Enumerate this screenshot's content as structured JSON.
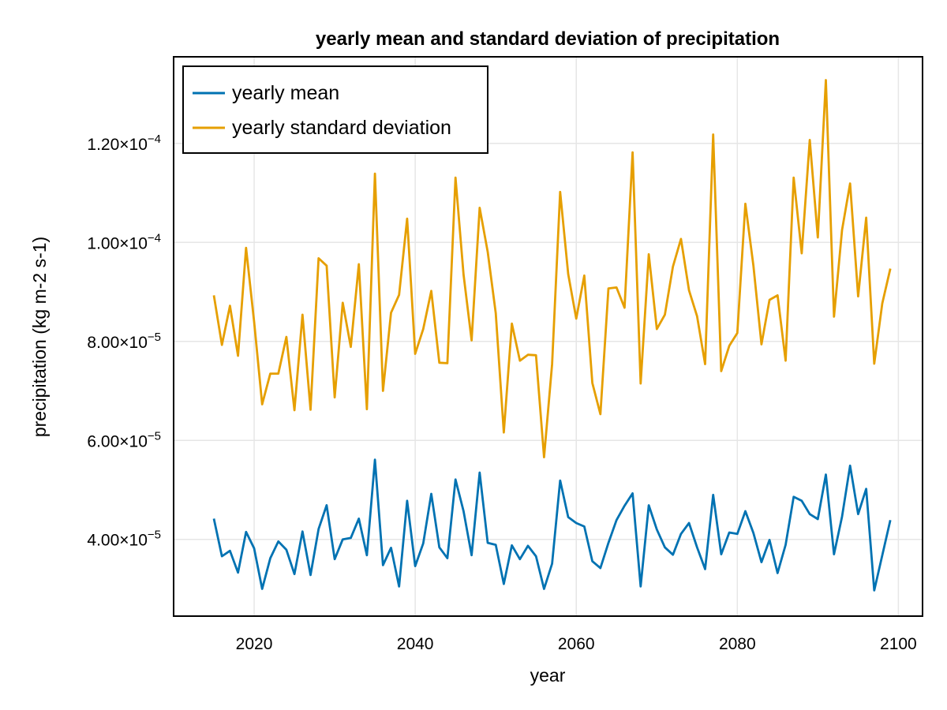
{
  "chart_data": {
    "type": "line",
    "title": "yearly mean and standard deviation of precipitation",
    "xlabel": "year",
    "ylabel": "precipitation (kg m-2 s-1)",
    "xlim": [
      2010,
      2103
    ],
    "ylim": [
      2.45e-05,
      0.0001375
    ],
    "x_ticks": [
      2020,
      2040,
      2060,
      2080,
      2100
    ],
    "x_tick_labels": [
      "2020",
      "2040",
      "2060",
      "2080",
      "2100"
    ],
    "y_ticks": [
      4e-05,
      6e-05,
      8e-05,
      0.0001,
      0.00012
    ],
    "y_tick_labels": [
      {
        "mantissa": "4.00×10",
        "exponent": "−5"
      },
      {
        "mantissa": "6.00×10",
        "exponent": "−5"
      },
      {
        "mantissa": "8.00×10",
        "exponent": "−5"
      },
      {
        "mantissa": "1.00×10",
        "exponent": "−4"
      },
      {
        "mantissa": "1.20×10",
        "exponent": "−4"
      }
    ],
    "grid": true,
    "legend_position": "top-left",
    "x": [
      2015,
      2016,
      2017,
      2018,
      2019,
      2020,
      2021,
      2022,
      2023,
      2024,
      2025,
      2026,
      2027,
      2028,
      2029,
      2030,
      2031,
      2032,
      2033,
      2034,
      2035,
      2036,
      2037,
      2038,
      2039,
      2040,
      2041,
      2042,
      2043,
      2044,
      2045,
      2046,
      2047,
      2048,
      2049,
      2050,
      2051,
      2052,
      2053,
      2054,
      2055,
      2056,
      2057,
      2058,
      2059,
      2060,
      2061,
      2062,
      2063,
      2064,
      2065,
      2066,
      2067,
      2068,
      2069,
      2070,
      2071,
      2072,
      2073,
      2074,
      2075,
      2076,
      2077,
      2078,
      2079,
      2080,
      2081,
      2082,
      2083,
      2084,
      2085,
      2086,
      2087,
      2088,
      2089,
      2090,
      2091,
      2092,
      2093,
      2094,
      2095,
      2096,
      2097,
      2098,
      2099
    ],
    "series": [
      {
        "name": "yearly mean",
        "color": "#0072b2",
        "values": [
          4.42e-05,
          3.66e-05,
          3.77e-05,
          3.33e-05,
          4.15e-05,
          3.82e-05,
          3e-05,
          3.62e-05,
          3.96e-05,
          3.79e-05,
          3.3e-05,
          4.16e-05,
          3.28e-05,
          4.21e-05,
          4.69e-05,
          3.6e-05,
          4e-05,
          4.03e-05,
          4.42e-05,
          3.68e-05,
          5.61e-05,
          3.48e-05,
          3.83e-05,
          3.05e-05,
          4.78e-05,
          3.46e-05,
          3.92e-05,
          4.92e-05,
          3.84e-05,
          3.62e-05,
          5.21e-05,
          4.57e-05,
          3.68e-05,
          5.35e-05,
          3.93e-05,
          3.89e-05,
          3.1e-05,
          3.88e-05,
          3.6e-05,
          3.87e-05,
          3.66e-05,
          3e-05,
          3.51e-05,
          5.19e-05,
          4.45e-05,
          4.33e-05,
          4.26e-05,
          3.56e-05,
          3.42e-05,
          3.93e-05,
          4.39e-05,
          4.68e-05,
          4.93e-05,
          3.05e-05,
          4.69e-05,
          4.2e-05,
          3.84e-05,
          3.69e-05,
          4.11e-05,
          4.33e-05,
          3.84e-05,
          3.4e-05,
          4.9e-05,
          3.7e-05,
          4.14e-05,
          4.11e-05,
          4.57e-05,
          4.13e-05,
          3.54e-05,
          3.99e-05,
          3.32e-05,
          3.89e-05,
          4.86e-05,
          4.78e-05,
          4.51e-05,
          4.41e-05,
          5.31e-05,
          3.7e-05,
          4.46e-05,
          5.49e-05,
          4.51e-05,
          5.02e-05,
          2.97e-05,
          3.68e-05,
          4.39e-05
        ]
      },
      {
        "name": "yearly standard deviation",
        "color": "#e69f00",
        "values": [
          8.93e-05,
          7.93e-05,
          8.72e-05,
          7.71e-05,
          9.89e-05,
          8.4e-05,
          6.73e-05,
          7.35e-05,
          7.35e-05,
          8.09e-05,
          6.61e-05,
          8.54e-05,
          6.62e-05,
          9.68e-05,
          9.53e-05,
          6.87e-05,
          8.78e-05,
          7.89e-05,
          9.56e-05,
          6.63e-05,
          0.0001139,
          7e-05,
          8.58e-05,
          8.94e-05,
          0.0001048,
          7.75e-05,
          8.25e-05,
          9.02e-05,
          7.57e-05,
          7.56e-05,
          0.0001131,
          9.35e-05,
          8.02e-05,
          0.000107,
          9.81e-05,
          8.57e-05,
          6.16e-05,
          8.36e-05,
          7.61e-05,
          7.73e-05,
          7.72e-05,
          5.66e-05,
          7.54e-05,
          0.0001102,
          9.36e-05,
          8.46e-05,
          9.33e-05,
          7.16e-05,
          6.53e-05,
          9.07e-05,
          9.09e-05,
          8.68e-05,
          0.0001182,
          7.15e-05,
          9.76e-05,
          8.25e-05,
          8.54e-05,
          9.51e-05,
          0.0001007,
          9.03e-05,
          8.51e-05,
          7.54e-05,
          0.0001218,
          7.4e-05,
          7.91e-05,
          8.17e-05,
          0.0001078,
          9.53e-05,
          7.94e-05,
          8.84e-05,
          8.93e-05,
          7.61e-05,
          0.0001131,
          9.78e-05,
          0.0001207,
          0.000101,
          0.0001328,
          8.5e-05,
          0.0001025,
          0.0001119,
          8.91e-05,
          0.000105,
          7.55e-05,
          8.77e-05,
          9.47e-05
        ]
      }
    ]
  }
}
